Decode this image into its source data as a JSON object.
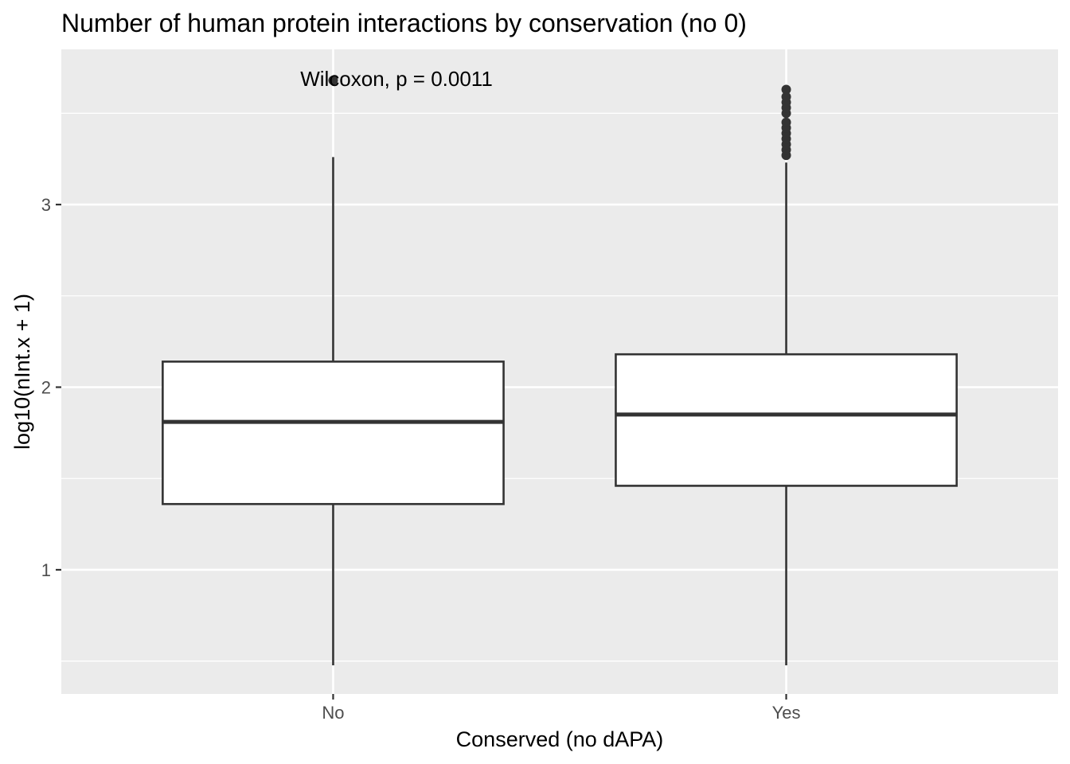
{
  "chart_data": {
    "type": "boxplot",
    "title": "Number of human protein interactions by conservation (no 0)",
    "xlabel": "Conserved (no dAPA)",
    "ylabel": "log10(nInt.x + 1)",
    "categories": [
      "No",
      "Yes"
    ],
    "ylim": [
      0.32,
      3.85
    ],
    "yticks": [
      1,
      2,
      3
    ],
    "grid": true,
    "annotation": "Wilcoxon, p = 0.0011",
    "boxes": [
      {
        "category": "No",
        "whisker_low": 0.477,
        "q1": 1.36,
        "median": 1.81,
        "q3": 2.14,
        "whisker_high": 3.26,
        "outliers": [
          3.68
        ]
      },
      {
        "category": "Yes",
        "whisker_low": 0.477,
        "q1": 1.46,
        "median": 1.85,
        "q3": 2.18,
        "whisker_high": 3.23,
        "outliers": [
          3.27,
          3.3,
          3.33,
          3.36,
          3.39,
          3.42,
          3.45,
          3.5,
          3.53,
          3.56,
          3.59,
          3.63
        ]
      }
    ],
    "colors": {
      "panel": "#ebebeb",
      "grid": "#ffffff",
      "box_fill": "#ffffff",
      "box_line": "#333333",
      "text": "#000000",
      "tick_text": "#4d4d4d"
    }
  }
}
